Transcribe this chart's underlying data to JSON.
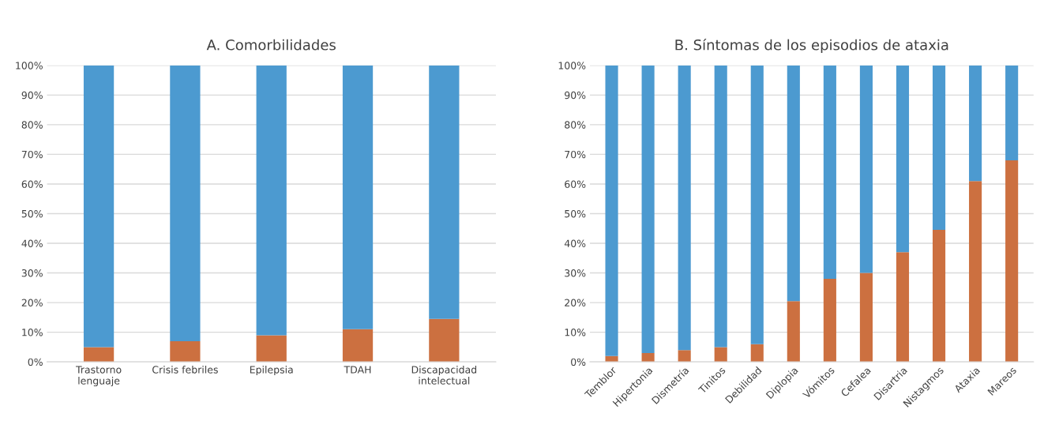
{
  "chart_data": [
    {
      "type": "bar",
      "title": "A. Comorbilidades",
      "stacked": true,
      "grid": "y",
      "categories": [
        "Trastorno\nlenguaje",
        "Crisis febriles",
        "Epilepsia",
        "TDAH",
        "Discapacidad\nintelectual"
      ],
      "series": [
        {
          "color": "#cc7040",
          "values": [
            5,
            7,
            9,
            11,
            14.5
          ]
        },
        {
          "color": "#4c9ad0",
          "values": [
            95,
            93,
            91,
            89,
            85.5
          ]
        }
      ],
      "ylim": [
        0,
        100
      ],
      "yticks": [
        {
          "value": 0,
          "label": "0%"
        },
        {
          "value": 10,
          "label": "10%"
        },
        {
          "value": 20,
          "label": "20%"
        },
        {
          "value": 30,
          "label": "30%"
        },
        {
          "value": 40,
          "label": "40%"
        },
        {
          "value": 50,
          "label": "50%"
        },
        {
          "value": 60,
          "label": "60%"
        },
        {
          "value": 70,
          "label": "70%"
        },
        {
          "value": 80,
          "label": "80%"
        },
        {
          "value": 90,
          "label": "90%"
        },
        {
          "value": 100,
          "label": "100%"
        }
      ]
    },
    {
      "type": "bar",
      "title": "B. Síntomas de los episodios de ataxia",
      "stacked": true,
      "grid": "y",
      "categories": [
        "Temblor",
        "Hipertonia",
        "Dismetría",
        "Tinitos",
        "Debilidad",
        "Diplopia",
        "Vómitos",
        "Cefalea",
        "Disartria",
        "Nistagmos",
        "Ataxia",
        "Mareos"
      ],
      "series": [
        {
          "color": "#cc7040",
          "values": [
            2,
            3,
            4,
            5,
            6,
            20.5,
            28,
            30,
            37,
            44.5,
            61,
            68
          ]
        },
        {
          "color": "#4c9ad0",
          "values": [
            98,
            97,
            96,
            95,
            94,
            79.5,
            72,
            70,
            63,
            55.5,
            39,
            32
          ]
        }
      ],
      "ylim": [
        0,
        100
      ],
      "yticks": [
        {
          "value": 0,
          "label": "0%"
        },
        {
          "value": 10,
          "label": "10%"
        },
        {
          "value": 20,
          "label": "20%"
        },
        {
          "value": 30,
          "label": "30%"
        },
        {
          "value": 40,
          "label": "40%"
        },
        {
          "value": 50,
          "label": "50%"
        },
        {
          "value": 60,
          "label": "60%"
        },
        {
          "value": 70,
          "label": "70%"
        },
        {
          "value": 80,
          "label": "80%"
        },
        {
          "value": 90,
          "label": "90%"
        },
        {
          "value": 100,
          "label": "100%"
        }
      ]
    }
  ]
}
